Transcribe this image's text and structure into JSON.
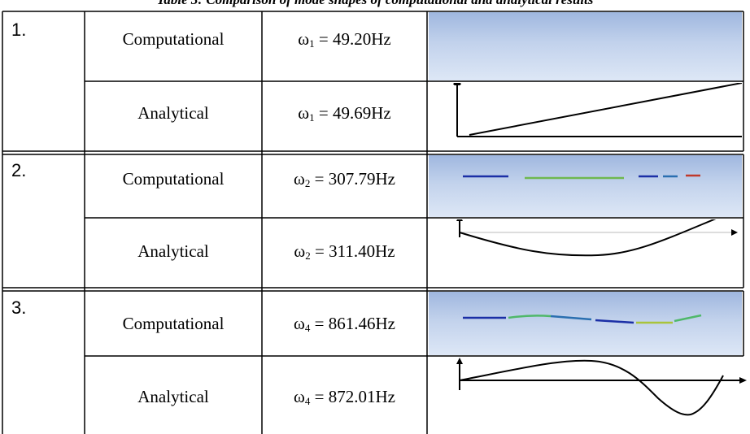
{
  "caption": "Table 3: Comparison of mode shapes of computational and analytical results",
  "rows": [
    {
      "number": "1.",
      "computational": {
        "label": "Computational",
        "omega": "ω",
        "subscript": "1",
        "value": " = 49.20Hz",
        "mode_image": "mode-1-simulation-bar"
      },
      "analytical": {
        "label": "Analytical",
        "omega": "ω",
        "subscript": "1",
        "value": " = 49.69Hz",
        "mode_image": "mode-1-analytical-line"
      }
    },
    {
      "number": "2.",
      "computational": {
        "label": "Computational",
        "omega": "ω",
        "subscript": "2",
        "value": " = 307.79Hz",
        "mode_image": "mode-2-simulation-bar"
      },
      "analytical": {
        "label": "Analytical",
        "omega": "ω",
        "subscript": "2",
        "value": " = 311.40Hz",
        "mode_image": "mode-2-analytical-curve"
      }
    },
    {
      "number": "3.",
      "computational": {
        "label": "Computational",
        "omega": "ω",
        "subscript": "4",
        "value": " = 861.46Hz",
        "mode_image": "mode-4-simulation-bar"
      },
      "analytical": {
        "label": "Analytical",
        "omega": "ω",
        "subscript": "4",
        "value": " = 872.01Hz",
        "mode_image": "mode-4-analytical-curve"
      }
    }
  ],
  "colors": {
    "border": "#000000",
    "sim_bg_top": "#9fb7df",
    "sim_bg_bottom": "#dde7f6",
    "beam_blue": "#1b2fa6",
    "beam_green": "#4fb86a",
    "beam_red": "#c0392b"
  }
}
